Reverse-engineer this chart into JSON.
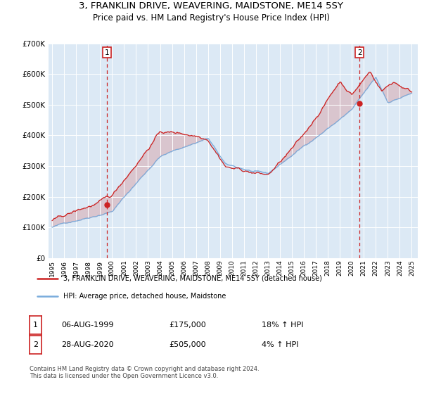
{
  "title": "3, FRANKLIN DRIVE, WEAVERING, MAIDSTONE, ME14 5SY",
  "subtitle": "Price paid vs. HM Land Registry's House Price Index (HPI)",
  "title_fontsize": 9.5,
  "subtitle_fontsize": 8.5,
  "plot_bg_color": "#dce9f5",
  "red_color": "#cc2222",
  "blue_color": "#7aacdc",
  "annotation1_date": 1999.58,
  "annotation1_value": 175000,
  "annotation2_date": 2020.65,
  "annotation2_value": 505000,
  "legend_entry1": "3, FRANKLIN DRIVE, WEAVERING, MAIDSTONE, ME14 5SY (detached house)",
  "legend_entry2": "HPI: Average price, detached house, Maidstone",
  "note1_date": "06-AUG-1999",
  "note1_price": "£175,000",
  "note1_hpi": "18% ↑ HPI",
  "note2_date": "28-AUG-2020",
  "note2_price": "£505,000",
  "note2_hpi": "4% ↑ HPI",
  "footer": "Contains HM Land Registry data © Crown copyright and database right 2024.\nThis data is licensed under the Open Government Licence v3.0.",
  "ylim": [
    0,
    700000
  ],
  "xlim_start": 1994.7,
  "xlim_end": 2025.5,
  "ytick_labels": [
    "£0",
    "£100K",
    "£200K",
    "£300K",
    "£400K",
    "£500K",
    "£600K",
    "£700K"
  ],
  "ytick_values": [
    0,
    100000,
    200000,
    300000,
    400000,
    500000,
    600000,
    700000
  ],
  "xticks": [
    1995,
    1996,
    1997,
    1998,
    1999,
    2000,
    2001,
    2002,
    2003,
    2004,
    2005,
    2006,
    2007,
    2008,
    2009,
    2010,
    2011,
    2012,
    2013,
    2014,
    2015,
    2016,
    2017,
    2018,
    2019,
    2020,
    2021,
    2022,
    2023,
    2024,
    2025
  ]
}
